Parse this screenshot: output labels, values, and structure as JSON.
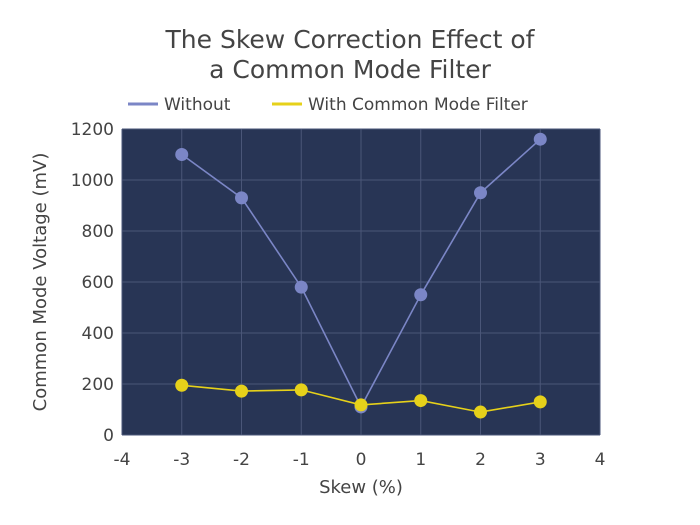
{
  "chart_data": {
    "type": "line",
    "title_lines": [
      "The Skew Correction Effect of",
      "a Common Mode Filter"
    ],
    "xlabel": "Skew (%)",
    "ylabel": "Common Mode Voltage (mV)",
    "xlim": [
      -4,
      4
    ],
    "ylim": [
      0,
      1200
    ],
    "x_ticks": [
      -4,
      -3,
      -2,
      -1,
      0,
      1,
      2,
      3,
      4
    ],
    "y_ticks": [
      0,
      200,
      400,
      600,
      800,
      1000,
      1200
    ],
    "grid": true,
    "legend_position": "top",
    "plot_background": "#283555",
    "series": [
      {
        "name": "Without",
        "color": "#7b86c6",
        "x": [
          -3,
          -2,
          -1,
          0,
          1,
          2,
          3
        ],
        "y": [
          1100,
          930,
          580,
          110,
          550,
          950,
          1160
        ]
      },
      {
        "name": "With Common Mode Filter",
        "color": "#e6d11a",
        "x": [
          -3,
          -2,
          -1,
          0,
          1,
          2,
          3
        ],
        "y": [
          195,
          172,
          177,
          118,
          135,
          90,
          130
        ]
      }
    ]
  }
}
